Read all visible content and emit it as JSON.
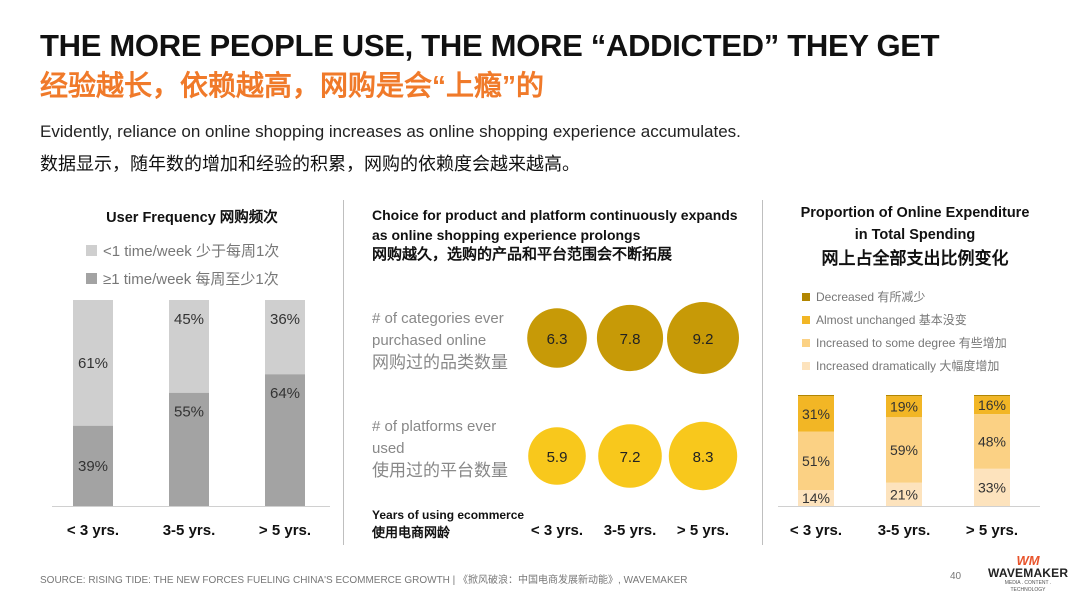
{
  "title_en": "THE MORE PEOPLE USE, THE MORE “ADDICTED” THEY GET",
  "title_zh": "经验越长，依赖越高，网购是会“上瘾”的",
  "description_en": "Evidently, reliance on online shopping increases as online shopping experience accumulates.",
  "description_zh": "数据显示，随年数的增加和经验的积累，网购的依赖度会越来越高。",
  "colors": {
    "title_accent": "#f07a2a",
    "freq_low": "#cfcfcf",
    "freq_high": "#a3a3a3",
    "bubble_categories": "#c79a07",
    "bubble_platforms": "#f8c81c",
    "spend_decreased": "#b28600",
    "spend_unchanged": "#f2b625",
    "spend_some": "#fbd184",
    "spend_dramatic": "#fde3bd"
  },
  "chart_data": [
    {
      "type": "bar",
      "stacked": true,
      "title": "User Frequency 网购频次",
      "categories": [
        "< 3 yrs.",
        "3-5 yrs.",
        "> 5 yrs."
      ],
      "series": [
        {
          "name": "<1 time/week 少于每周1次",
          "values": [
            61,
            45,
            36
          ],
          "labels": [
            "61%",
            "45%",
            "36%"
          ]
        },
        {
          "name": "≥1 time/week 每周至少1次",
          "values": [
            39,
            55,
            64
          ],
          "labels": [
            "39%",
            "55%",
            "64%"
          ]
        }
      ],
      "ylim": [
        0,
        100
      ]
    },
    {
      "type": "scatter",
      "subtype": "bubble",
      "title": "Choice for product and platform continuously expands as online shopping experience prolongs",
      "title_zh": "网购越久，选购的产品和平台范围会不断拓展",
      "xlabel": "Years of using ecommerce",
      "xlabel_zh": "使用电商网龄",
      "categories": [
        "< 3 yrs.",
        "3-5 yrs.",
        "> 5 yrs."
      ],
      "series": [
        {
          "name_en": "# of categories ever purchased online",
          "name_zh": "网购过的品类数量",
          "values": [
            6.3,
            7.8,
            9.2
          ],
          "labels": [
            "6.3",
            "7.8",
            "9.2"
          ]
        },
        {
          "name_en": "# of platforms ever used",
          "name_zh": "使用过的平台数量",
          "values": [
            5.9,
            7.2,
            8.3
          ],
          "labels": [
            "5.9",
            "7.2",
            "8.3"
          ]
        }
      ]
    },
    {
      "type": "bar",
      "stacked": true,
      "title": "Proportion of Online Expenditure in Total Spending",
      "title_zh": "网上占全部支出比例变化",
      "categories": [
        "< 3 yrs.",
        "3-5 yrs.",
        "> 5 yrs."
      ],
      "legend_order": [
        "Decreased 有所减少",
        "Almost unchanged 基本没变",
        "Increased to some degree 有些增加",
        "Increased dramatically 大幅度增加"
      ],
      "series": [
        {
          "name": "Decreased 有所减少",
          "values": [
            1,
            1,
            1
          ],
          "labels": [
            "",
            "",
            ""
          ]
        },
        {
          "name": "Almost unchanged 基本没变",
          "values": [
            31,
            19,
            16
          ],
          "labels": [
            "31%",
            "19%",
            "16%"
          ]
        },
        {
          "name": "Increased to some degree 有些增加",
          "values": [
            51,
            59,
            48
          ],
          "labels": [
            "51%",
            "59%",
            "48%"
          ]
        },
        {
          "name": "Increased dramatically 大幅度增加",
          "values": [
            14,
            21,
            33
          ],
          "labels": [
            "14%",
            "21%",
            "33%"
          ]
        }
      ],
      "ylim": [
        0,
        100
      ]
    }
  ],
  "footer": {
    "source": "SOURCE: RISING TIDE: THE NEW FORCES FUELING CHINA'S ECOMMERCE GROWTH | 《掀风破浪：中国电商发展新动能》, WAVEMAKER",
    "page_number": "40",
    "logo_mark": "WM",
    "logo_name": "WAVEMAKER",
    "logo_tagline": "MEDIA . CONTENT . TECHNOLOGY"
  }
}
